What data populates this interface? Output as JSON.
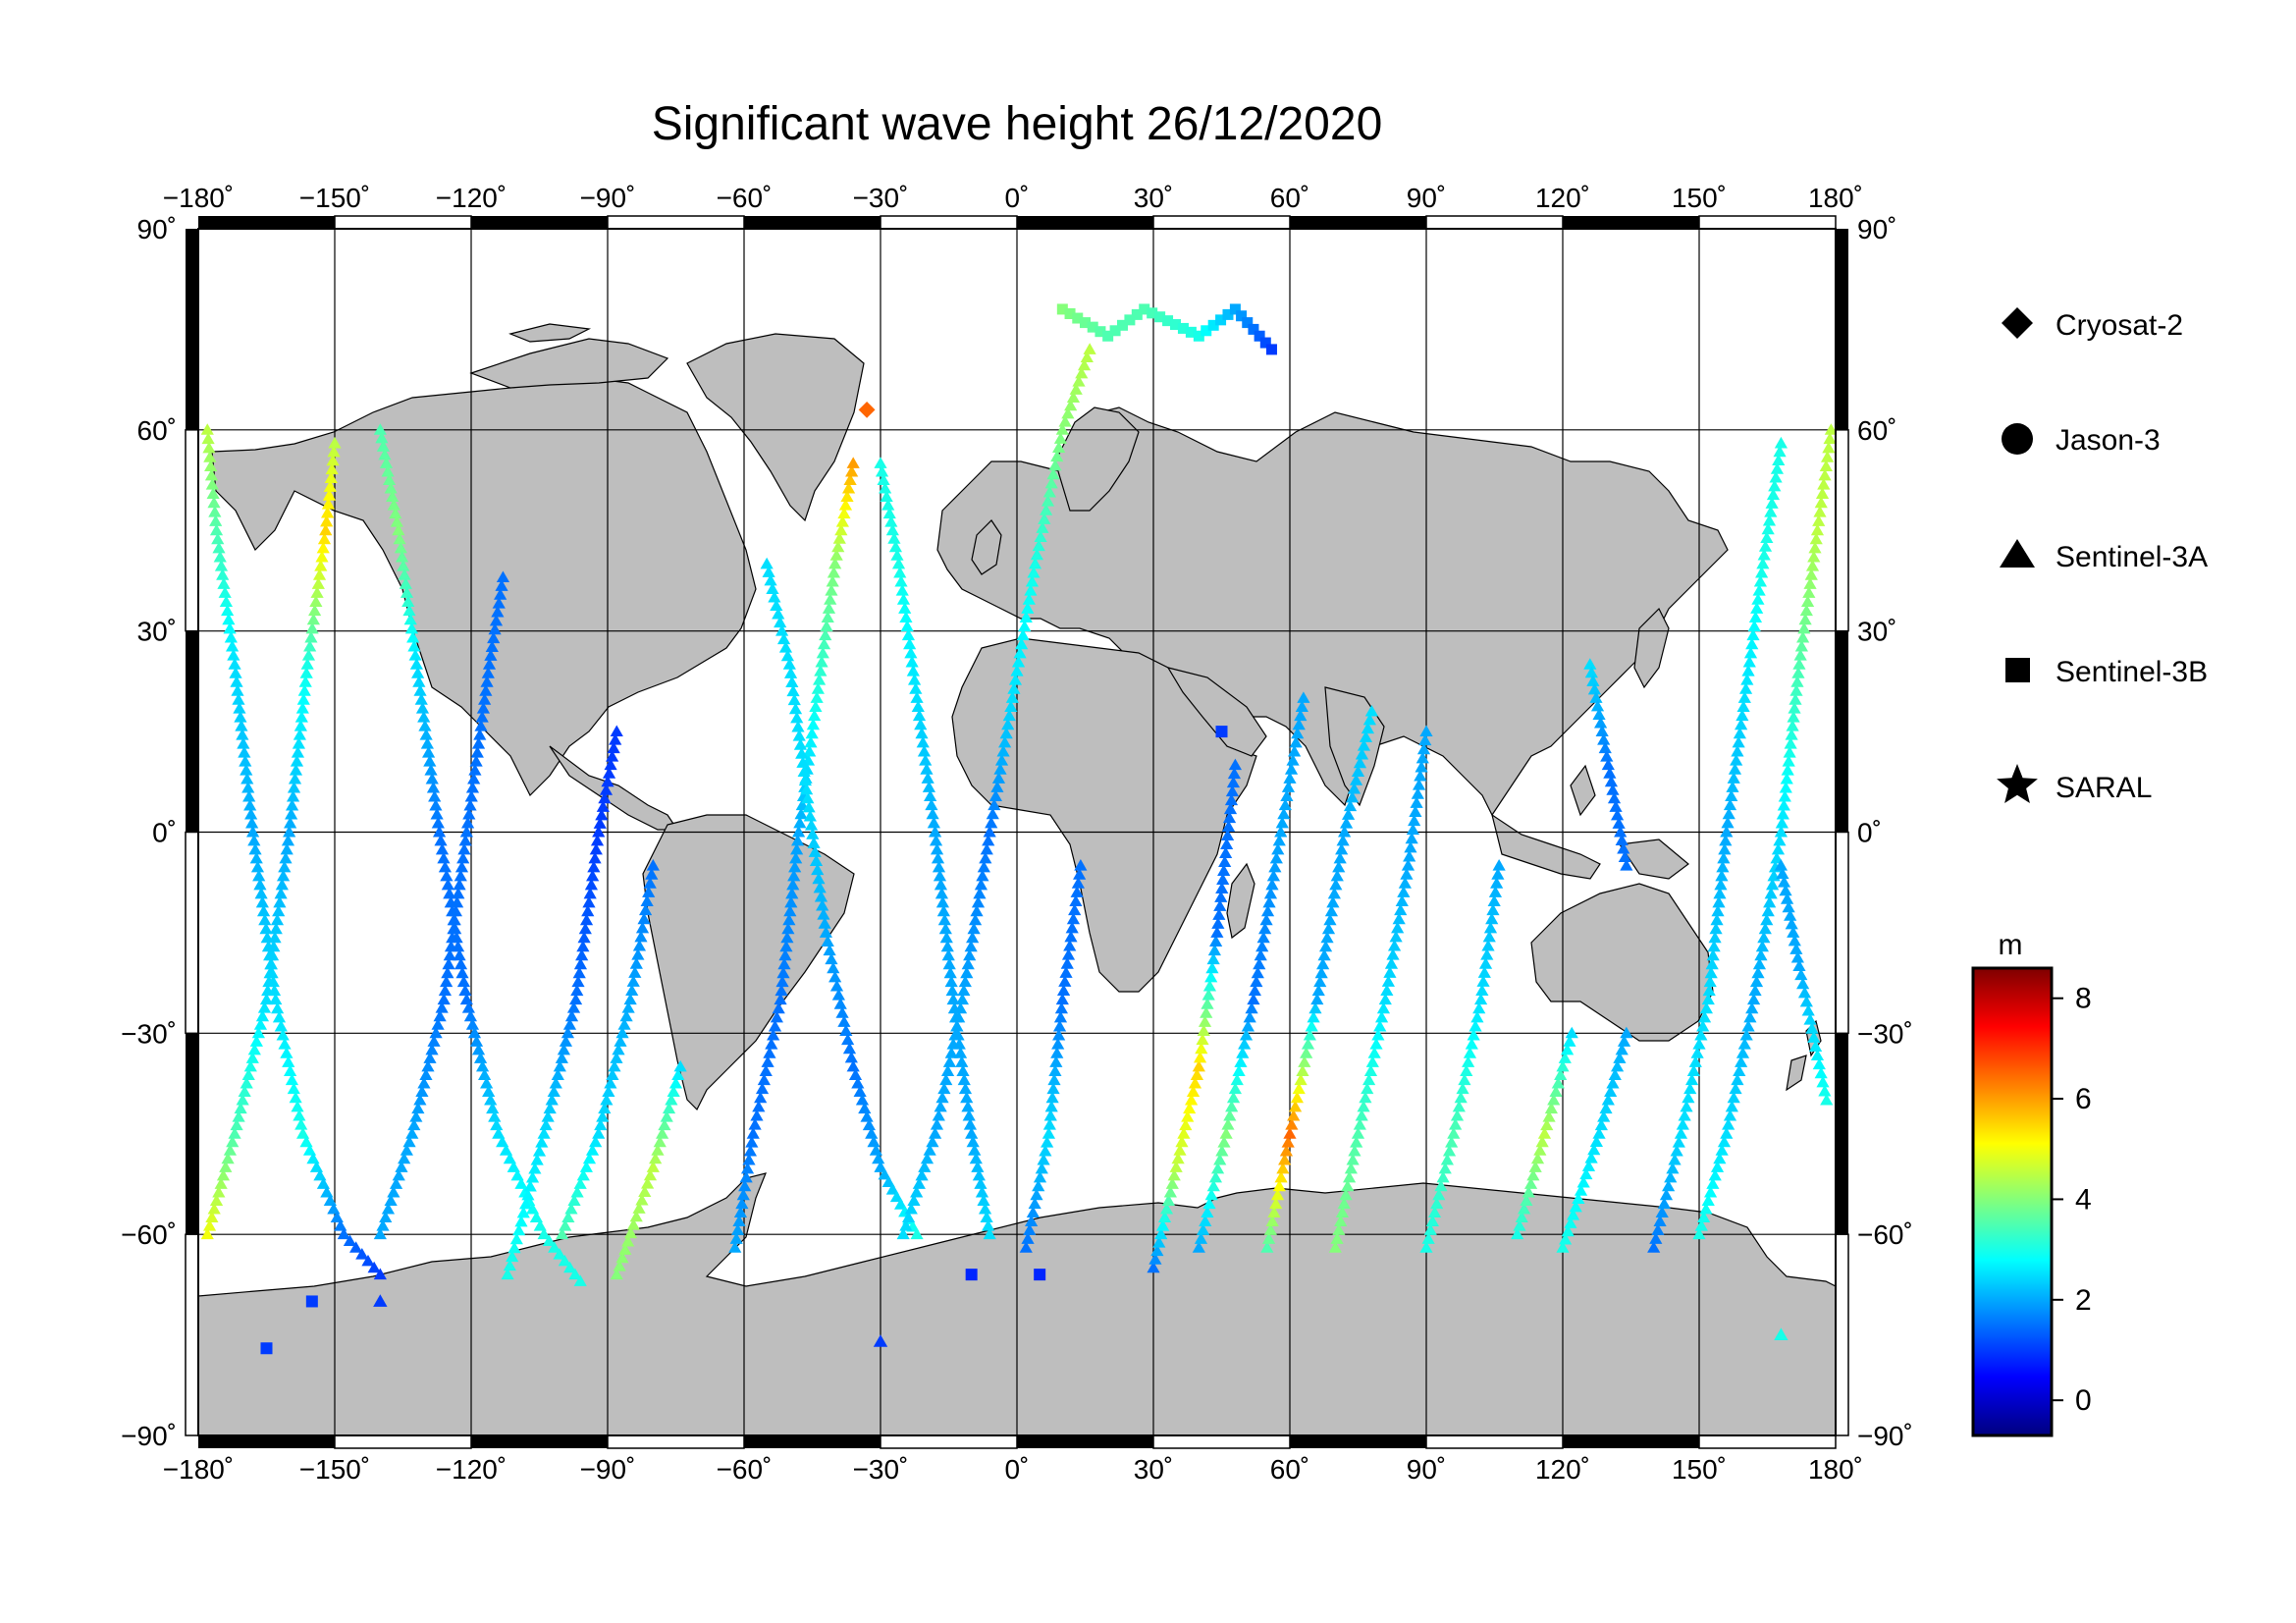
{
  "title": "Significant wave height 26/12/2020",
  "map": {
    "projection": "equirectangular",
    "lon_range": [
      -180,
      180
    ],
    "lat_range": [
      -90,
      90
    ],
    "lon_ticks": [
      -180,
      -150,
      -120,
      -90,
      -60,
      -30,
      0,
      30,
      60,
      90,
      120,
      150,
      180
    ],
    "lat_ticks": [
      90,
      60,
      30,
      0,
      -30,
      -60,
      -90
    ],
    "lon_tick_labels": [
      "−180˚",
      "−150˚",
      "−120˚",
      "−90˚",
      "−60˚",
      "−30˚",
      "0˚",
      "30˚",
      "60˚",
      "90˚",
      "120˚",
      "150˚",
      "180˚"
    ],
    "lat_tick_labels": [
      "90˚",
      "60˚",
      "30˚",
      "0˚",
      "−30˚",
      "−60˚",
      "−90˚"
    ],
    "grid": true,
    "land_color": "#bebebe",
    "ocean_color": "#ffffff",
    "frame_color": "#000000"
  },
  "legend": {
    "placement": "right",
    "items": [
      {
        "name": "Cryosat-2",
        "marker": "diamond"
      },
      {
        "name": "Jason-3",
        "marker": "circle"
      },
      {
        "name": "Sentinel-3A",
        "marker": "triangle"
      },
      {
        "name": "Sentinel-3B",
        "marker": "square"
      },
      {
        "name": "SARAL",
        "marker": "star"
      }
    ]
  },
  "colorbar": {
    "unit": "m",
    "range": [
      -0.7,
      8.6
    ],
    "ticks": [
      0,
      2,
      4,
      6,
      8
    ],
    "tick_labels": [
      "0",
      "2",
      "4",
      "6",
      "8"
    ],
    "colormap": "jet",
    "colors": [
      "#00007f",
      "#0000ff",
      "#007fff",
      "#00ffff",
      "#7fff7f",
      "#ffff00",
      "#ff7f00",
      "#ff0000",
      "#7f0000"
    ]
  },
  "chart_data": {
    "type": "scatter",
    "title": "Significant wave height 26/12/2020",
    "xlabel": "",
    "ylabel": "",
    "xlim": [
      -180,
      180
    ],
    "ylim": [
      -90,
      90
    ],
    "color_value": "significant wave height (m)",
    "tracks": [
      {
        "marker": "triangle",
        "lat_range": [
          -68,
          62
        ],
        "points": [
          [
            -178,
            60,
            4.5
          ],
          [
            -176,
            45,
            3.5
          ],
          [
            -172,
            25,
            2.5
          ],
          [
            -168,
            0,
            2.0
          ],
          [
            -163,
            -25,
            2.5
          ],
          [
            -157,
            -45,
            3.0
          ],
          [
            -148,
            -60,
            1.5
          ],
          [
            -140,
            -66,
            1.0
          ]
        ]
      },
      {
        "marker": "triangle",
        "lat_range": [
          -68,
          62
        ],
        "points": [
          [
            -178,
            -60,
            5.0
          ],
          [
            -172,
            -45,
            3.5
          ],
          [
            -165,
            -25,
            2.5
          ],
          [
            -160,
            0,
            2.0
          ],
          [
            -156,
            25,
            3.0
          ],
          [
            -152,
            45,
            5.5
          ],
          [
            -150,
            58,
            4.5
          ]
        ]
      },
      {
        "marker": "triangle",
        "lat_range": [
          -68,
          62
        ],
        "points": [
          [
            -140,
            60,
            3.5
          ],
          [
            -136,
            45,
            4.0
          ],
          [
            -132,
            25,
            2.5
          ],
          [
            -127,
            0,
            1.5
          ],
          [
            -121,
            -25,
            1.5
          ],
          [
            -114,
            -45,
            2.5
          ],
          [
            -104,
            -60,
            3.0
          ],
          [
            -96,
            -67,
            3.0
          ]
        ]
      },
      {
        "marker": "triangle",
        "lat_range": [
          -68,
          62
        ],
        "points": [
          [
            -140,
            -60,
            2.0
          ],
          [
            -133,
            -45,
            2.0
          ],
          [
            -126,
            -25,
            1.5
          ],
          [
            -121,
            0,
            1.5
          ],
          [
            -116,
            25,
            1.5
          ],
          [
            -113,
            38,
            1.5
          ]
        ]
      },
      {
        "marker": "triangle",
        "lat_range": [
          -68,
          62
        ],
        "points": [
          [
            -112,
            -66,
            3.0
          ],
          [
            -104,
            -45,
            2.5
          ],
          [
            -97,
            -25,
            1.5
          ],
          [
            -92,
            0,
            1.0
          ],
          [
            -88,
            15,
            1.0
          ]
        ]
      },
      {
        "marker": "triangle",
        "lat_range": [
          -68,
          62
        ],
        "points": [
          [
            -100,
            -60,
            3.5
          ],
          [
            -92,
            -45,
            2.5
          ],
          [
            -85,
            -25,
            2.0
          ],
          [
            -80,
            -5,
            1.5
          ]
        ]
      },
      {
        "marker": "triangle",
        "lat_range": [
          -68,
          62
        ],
        "points": [
          [
            -88,
            -66,
            4.0
          ],
          [
            -80,
            -50,
            4.5
          ],
          [
            -74,
            -35,
            2.5
          ]
        ]
      },
      {
        "marker": "triangle",
        "lat_range": [
          -68,
          62
        ],
        "points": [
          [
            -62,
            -62,
            2.0
          ],
          [
            -58,
            -45,
            1.5
          ],
          [
            -52,
            -25,
            1.5
          ],
          [
            -48,
            0,
            2.0
          ],
          [
            -44,
            20,
            3.0
          ],
          [
            -40,
            40,
            4.0
          ],
          [
            -36,
            55,
            6.0
          ]
        ]
      },
      {
        "marker": "triangle",
        "lat_range": [
          -68,
          62
        ],
        "points": [
          [
            -55,
            40,
            2.5
          ],
          [
            -50,
            25,
            2.5
          ],
          [
            -46,
            5,
            2.5
          ],
          [
            -42,
            -15,
            2.0
          ],
          [
            -36,
            -35,
            1.5
          ],
          [
            -30,
            -50,
            2.0
          ],
          [
            -22,
            -60,
            3.0
          ]
        ]
      },
      {
        "marker": "triangle",
        "lat_range": [
          -68,
          62
        ],
        "points": [
          [
            -30,
            55,
            3.0
          ],
          [
            -26,
            40,
            3.0
          ],
          [
            -22,
            20,
            2.5
          ],
          [
            -18,
            0,
            2.0
          ],
          [
            -14,
            -25,
            2.0
          ],
          [
            -10,
            -45,
            2.0
          ],
          [
            -6,
            -60,
            2.5
          ]
        ]
      },
      {
        "marker": "triangle",
        "lat_range": [
          -68,
          62
        ],
        "points": [
          [
            -25,
            -60,
            2.5
          ],
          [
            -18,
            -45,
            2.0
          ],
          [
            -12,
            -25,
            2.0
          ],
          [
            -6,
            0,
            1.5
          ],
          [
            -1,
            20,
            2.5
          ],
          [
            4,
            40,
            3.0
          ],
          [
            10,
            60,
            4.0
          ],
          [
            16,
            72,
            4.5
          ]
        ]
      },
      {
        "marker": "triangle",
        "lat_range": [
          -68,
          62
        ],
        "points": [
          [
            2,
            -62,
            1.5
          ],
          [
            7,
            -45,
            2.5
          ],
          [
            10,
            -25,
            1.5
          ],
          [
            14,
            -5,
            1.5
          ]
        ]
      },
      {
        "marker": "triangle",
        "lat_range": [
          -68,
          62
        ],
        "points": [
          [
            30,
            -65,
            1.5
          ],
          [
            35,
            -50,
            4.5
          ],
          [
            40,
            -35,
            5.5
          ],
          [
            44,
            -15,
            1.5
          ],
          [
            48,
            10,
            1.5
          ]
        ]
      },
      {
        "marker": "triangle",
        "lat_range": [
          -68,
          62
        ],
        "points": [
          [
            40,
            -62,
            2.0
          ],
          [
            46,
            -45,
            4.0
          ],
          [
            52,
            -25,
            1.5
          ],
          [
            58,
            0,
            2.0
          ],
          [
            63,
            20,
            2.0
          ]
        ]
      },
      {
        "marker": "triangle",
        "lat_range": [
          -68,
          62
        ],
        "points": [
          [
            55,
            -62,
            3.5
          ],
          [
            60,
            -45,
            6.5
          ],
          [
            66,
            -25,
            2.0
          ],
          [
            72,
            0,
            2.0
          ],
          [
            78,
            18,
            2.5
          ]
        ]
      },
      {
        "marker": "triangle",
        "lat_range": [
          -68,
          62
        ],
        "points": [
          [
            70,
            -62,
            4.0
          ],
          [
            75,
            -45,
            3.5
          ],
          [
            81,
            -25,
            2.5
          ],
          [
            86,
            -5,
            2.0
          ],
          [
            90,
            15,
            2.0
          ]
        ]
      },
      {
        "marker": "triangle",
        "lat_range": [
          -68,
          62
        ],
        "points": [
          [
            90,
            -62,
            3.0
          ],
          [
            96,
            -45,
            3.5
          ],
          [
            102,
            -25,
            2.5
          ],
          [
            106,
            -5,
            2.0
          ]
        ]
      },
      {
        "marker": "triangle",
        "lat_range": [
          -68,
          62
        ],
        "points": [
          [
            110,
            -60,
            3.0
          ],
          [
            116,
            -45,
            4.5
          ],
          [
            122,
            -30,
            2.5
          ]
        ]
      },
      {
        "marker": "triangle",
        "lat_range": [
          -68,
          62
        ],
        "points": [
          [
            120,
            -62,
            3.0
          ],
          [
            128,
            -45,
            2.5
          ],
          [
            134,
            -30,
            2.0
          ]
        ]
      },
      {
        "marker": "triangle",
        "lat_range": [
          -68,
          62
        ],
        "points": [
          [
            140,
            -62,
            1.5
          ],
          [
            146,
            -45,
            2.5
          ],
          [
            152,
            -25,
            2.5
          ],
          [
            156,
            0,
            2.0
          ],
          [
            160,
            20,
            2.5
          ],
          [
            164,
            40,
            3.0
          ],
          [
            168,
            58,
            3.0
          ]
        ]
      },
      {
        "marker": "triangle",
        "lat_range": [
          -68,
          62
        ],
        "points": [
          [
            126,
            25,
            2.5
          ],
          [
            130,
            10,
            1.5
          ],
          [
            134,
            -5,
            1.5
          ]
        ]
      },
      {
        "marker": "triangle",
        "lat_range": [
          -68,
          62
        ],
        "points": [
          [
            150,
            -60,
            3.0
          ],
          [
            156,
            -45,
            2.5
          ],
          [
            162,
            -25,
            2.0
          ],
          [
            168,
            0,
            2.5
          ],
          [
            172,
            25,
            3.5
          ],
          [
            176,
            45,
            4.5
          ],
          [
            179,
            60,
            4.5
          ]
        ]
      },
      {
        "marker": "triangle",
        "lat_range": [
          -68,
          62
        ],
        "points": [
          [
            178,
            -40,
            3.0
          ],
          [
            172,
            -20,
            2.0
          ],
          [
            168,
            -5,
            2.0
          ]
        ]
      },
      {
        "marker": "square",
        "lat_range": [
          55,
          80
        ],
        "points": [
          [
            10,
            78,
            4.0
          ],
          [
            20,
            74,
            3.5
          ],
          [
            28,
            78,
            3.5
          ],
          [
            40,
            74,
            3.0
          ],
          [
            48,
            78,
            2.0
          ],
          [
            56,
            72,
            1.0
          ]
        ]
      }
    ],
    "scattered_points": [
      {
        "marker": "square",
        "lon": -155,
        "lat": -70,
        "value": 1.0
      },
      {
        "marker": "square",
        "lon": -165,
        "lat": -77,
        "value": 1.0
      },
      {
        "marker": "triangle",
        "lon": -140,
        "lat": -70,
        "value": 1.0
      },
      {
        "marker": "square",
        "lon": -10,
        "lat": -66,
        "value": 0.8
      },
      {
        "marker": "square",
        "lon": 5,
        "lat": -66,
        "value": 0.8
      },
      {
        "marker": "triangle",
        "lon": -30,
        "lat": -76,
        "value": 1.0
      },
      {
        "marker": "diamond",
        "lon": -33,
        "lat": 63,
        "value": 6.5
      },
      {
        "marker": "square",
        "lon": 45,
        "lat": 15,
        "value": 1.0
      },
      {
        "marker": "triangle",
        "lon": 168,
        "lat": -75,
        "value": 3.0
      }
    ]
  }
}
